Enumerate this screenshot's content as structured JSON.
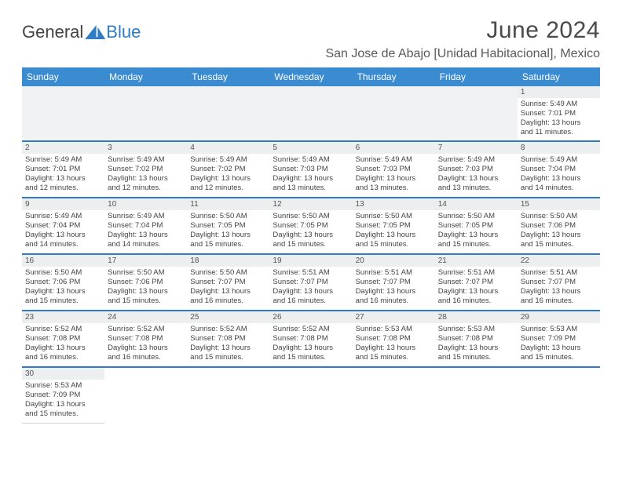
{
  "logo": {
    "part1": "General",
    "part2": "Blue"
  },
  "title": "June 2024",
  "location": "San Jose de Abajo [Unidad Habitacional], Mexico",
  "colors": {
    "header_bg": "#3b8bd0",
    "header_fg": "#ffffff",
    "accent": "#2f7bc4",
    "daynum_bg": "#eceef0",
    "text": "#444444",
    "blank_bg": "#f1f2f3"
  },
  "dow": [
    "Sunday",
    "Monday",
    "Tuesday",
    "Wednesday",
    "Thursday",
    "Friday",
    "Saturday"
  ],
  "weeks": [
    [
      null,
      null,
      null,
      null,
      null,
      null,
      {
        "n": "1",
        "sr": "Sunrise: 5:49 AM",
        "ss": "Sunset: 7:01 PM",
        "d1": "Daylight: 13 hours",
        "d2": "and 11 minutes."
      }
    ],
    [
      {
        "n": "2",
        "sr": "Sunrise: 5:49 AM",
        "ss": "Sunset: 7:01 PM",
        "d1": "Daylight: 13 hours",
        "d2": "and 12 minutes."
      },
      {
        "n": "3",
        "sr": "Sunrise: 5:49 AM",
        "ss": "Sunset: 7:02 PM",
        "d1": "Daylight: 13 hours",
        "d2": "and 12 minutes."
      },
      {
        "n": "4",
        "sr": "Sunrise: 5:49 AM",
        "ss": "Sunset: 7:02 PM",
        "d1": "Daylight: 13 hours",
        "d2": "and 12 minutes."
      },
      {
        "n": "5",
        "sr": "Sunrise: 5:49 AM",
        "ss": "Sunset: 7:03 PM",
        "d1": "Daylight: 13 hours",
        "d2": "and 13 minutes."
      },
      {
        "n": "6",
        "sr": "Sunrise: 5:49 AM",
        "ss": "Sunset: 7:03 PM",
        "d1": "Daylight: 13 hours",
        "d2": "and 13 minutes."
      },
      {
        "n": "7",
        "sr": "Sunrise: 5:49 AM",
        "ss": "Sunset: 7:03 PM",
        "d1": "Daylight: 13 hours",
        "d2": "and 13 minutes."
      },
      {
        "n": "8",
        "sr": "Sunrise: 5:49 AM",
        "ss": "Sunset: 7:04 PM",
        "d1": "Daylight: 13 hours",
        "d2": "and 14 minutes."
      }
    ],
    [
      {
        "n": "9",
        "sr": "Sunrise: 5:49 AM",
        "ss": "Sunset: 7:04 PM",
        "d1": "Daylight: 13 hours",
        "d2": "and 14 minutes."
      },
      {
        "n": "10",
        "sr": "Sunrise: 5:49 AM",
        "ss": "Sunset: 7:04 PM",
        "d1": "Daylight: 13 hours",
        "d2": "and 14 minutes."
      },
      {
        "n": "11",
        "sr": "Sunrise: 5:50 AM",
        "ss": "Sunset: 7:05 PM",
        "d1": "Daylight: 13 hours",
        "d2": "and 15 minutes."
      },
      {
        "n": "12",
        "sr": "Sunrise: 5:50 AM",
        "ss": "Sunset: 7:05 PM",
        "d1": "Daylight: 13 hours",
        "d2": "and 15 minutes."
      },
      {
        "n": "13",
        "sr": "Sunrise: 5:50 AM",
        "ss": "Sunset: 7:05 PM",
        "d1": "Daylight: 13 hours",
        "d2": "and 15 minutes."
      },
      {
        "n": "14",
        "sr": "Sunrise: 5:50 AM",
        "ss": "Sunset: 7:05 PM",
        "d1": "Daylight: 13 hours",
        "d2": "and 15 minutes."
      },
      {
        "n": "15",
        "sr": "Sunrise: 5:50 AM",
        "ss": "Sunset: 7:06 PM",
        "d1": "Daylight: 13 hours",
        "d2": "and 15 minutes."
      }
    ],
    [
      {
        "n": "16",
        "sr": "Sunrise: 5:50 AM",
        "ss": "Sunset: 7:06 PM",
        "d1": "Daylight: 13 hours",
        "d2": "and 15 minutes."
      },
      {
        "n": "17",
        "sr": "Sunrise: 5:50 AM",
        "ss": "Sunset: 7:06 PM",
        "d1": "Daylight: 13 hours",
        "d2": "and 15 minutes."
      },
      {
        "n": "18",
        "sr": "Sunrise: 5:50 AM",
        "ss": "Sunset: 7:07 PM",
        "d1": "Daylight: 13 hours",
        "d2": "and 16 minutes."
      },
      {
        "n": "19",
        "sr": "Sunrise: 5:51 AM",
        "ss": "Sunset: 7:07 PM",
        "d1": "Daylight: 13 hours",
        "d2": "and 16 minutes."
      },
      {
        "n": "20",
        "sr": "Sunrise: 5:51 AM",
        "ss": "Sunset: 7:07 PM",
        "d1": "Daylight: 13 hours",
        "d2": "and 16 minutes."
      },
      {
        "n": "21",
        "sr": "Sunrise: 5:51 AM",
        "ss": "Sunset: 7:07 PM",
        "d1": "Daylight: 13 hours",
        "d2": "and 16 minutes."
      },
      {
        "n": "22",
        "sr": "Sunrise: 5:51 AM",
        "ss": "Sunset: 7:07 PM",
        "d1": "Daylight: 13 hours",
        "d2": "and 16 minutes."
      }
    ],
    [
      {
        "n": "23",
        "sr": "Sunrise: 5:52 AM",
        "ss": "Sunset: 7:08 PM",
        "d1": "Daylight: 13 hours",
        "d2": "and 16 minutes."
      },
      {
        "n": "24",
        "sr": "Sunrise: 5:52 AM",
        "ss": "Sunset: 7:08 PM",
        "d1": "Daylight: 13 hours",
        "d2": "and 16 minutes."
      },
      {
        "n": "25",
        "sr": "Sunrise: 5:52 AM",
        "ss": "Sunset: 7:08 PM",
        "d1": "Daylight: 13 hours",
        "d2": "and 15 minutes."
      },
      {
        "n": "26",
        "sr": "Sunrise: 5:52 AM",
        "ss": "Sunset: 7:08 PM",
        "d1": "Daylight: 13 hours",
        "d2": "and 15 minutes."
      },
      {
        "n": "27",
        "sr": "Sunrise: 5:53 AM",
        "ss": "Sunset: 7:08 PM",
        "d1": "Daylight: 13 hours",
        "d2": "and 15 minutes."
      },
      {
        "n": "28",
        "sr": "Sunrise: 5:53 AM",
        "ss": "Sunset: 7:08 PM",
        "d1": "Daylight: 13 hours",
        "d2": "and 15 minutes."
      },
      {
        "n": "29",
        "sr": "Sunrise: 5:53 AM",
        "ss": "Sunset: 7:09 PM",
        "d1": "Daylight: 13 hours",
        "d2": "and 15 minutes."
      }
    ],
    [
      {
        "n": "30",
        "sr": "Sunrise: 5:53 AM",
        "ss": "Sunset: 7:09 PM",
        "d1": "Daylight: 13 hours",
        "d2": "and 15 minutes."
      },
      null,
      null,
      null,
      null,
      null,
      null
    ]
  ]
}
